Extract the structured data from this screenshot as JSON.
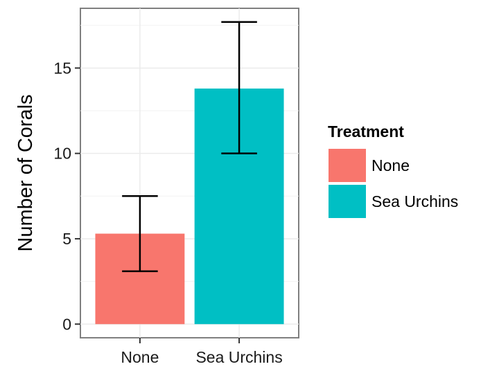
{
  "chart_data": {
    "type": "bar",
    "title": "",
    "xlabel": "",
    "ylabel": "Number of Corals",
    "categories": [
      "None",
      "Sea Urchins"
    ],
    "values": [
      5.3,
      13.8
    ],
    "error_low": [
      3.1,
      10.0
    ],
    "error_high": [
      7.5,
      17.7
    ],
    "ylim": [
      -0.8,
      18.5
    ],
    "yticks": [
      0,
      5,
      10,
      15
    ],
    "ytick_labels": [
      "0",
      "5",
      "10",
      "15"
    ],
    "grid": true,
    "legend": {
      "title": "Treatment",
      "placement": "right",
      "entries": [
        "None",
        "Sea Urchins"
      ]
    },
    "colors": {
      "None": "#F8766D",
      "Sea Urchins": "#00BFC4"
    },
    "panel_background": "#ffffff",
    "grid_color": "#ebebeb",
    "frame_color": "#7f7f7f"
  }
}
